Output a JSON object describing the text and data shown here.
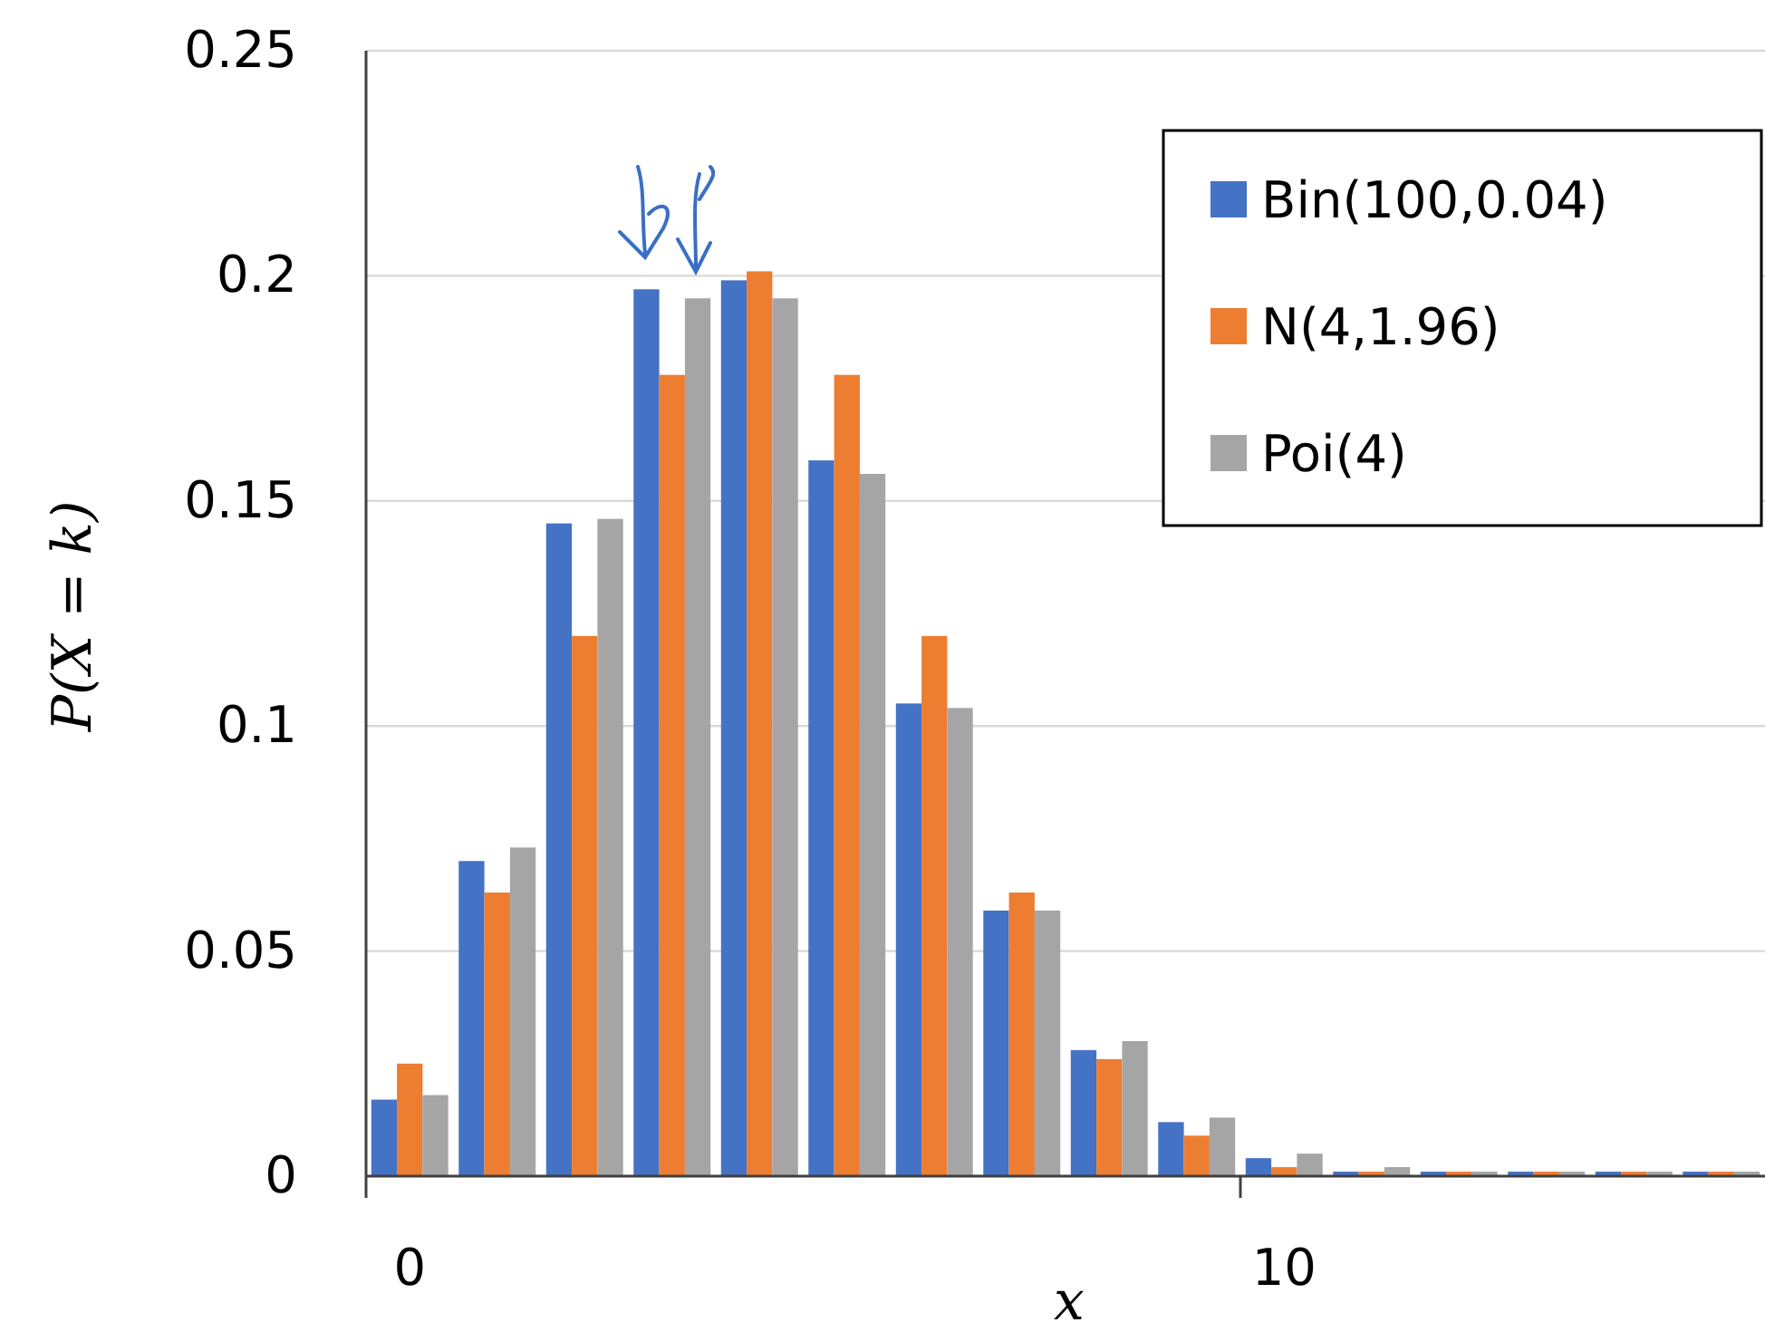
{
  "chart_data": {
    "type": "bar",
    "xlabel": "x",
    "ylabel": "P(X = k)",
    "categories": [
      "0",
      null,
      null,
      null,
      null,
      null,
      null,
      null,
      null,
      null,
      "10",
      null,
      null,
      null,
      null,
      null
    ],
    "series": [
      {
        "name": "Bin(100,0.04)",
        "color": "#4472c4",
        "values": [
          0.017,
          0.07,
          0.145,
          0.197,
          0.199,
          0.159,
          0.105,
          0.059,
          0.028,
          0.012,
          0.004,
          0.001,
          0.001,
          0.001,
          0.001,
          0.001
        ]
      },
      {
        "name": "N(4,1.96)",
        "color": "#ed7d31",
        "values": [
          0.025,
          0.063,
          0.12,
          0.178,
          0.201,
          0.178,
          0.12,
          0.063,
          0.026,
          0.009,
          0.002,
          0.001,
          0.001,
          0.001,
          0.001,
          0.001
        ]
      },
      {
        "name": "Poi(4)",
        "color": "#a5a5a5",
        "values": [
          0.018,
          0.073,
          0.146,
          0.195,
          0.195,
          0.156,
          0.104,
          0.059,
          0.03,
          0.013,
          0.005,
          0.002,
          0.001,
          0.001,
          0.001,
          0.001
        ]
      }
    ],
    "ylim": [
      0,
      0.25
    ],
    "yticks": [
      0,
      0.05,
      0.1,
      0.15,
      0.2,
      0.25
    ],
    "grid": "y",
    "legend": "top right"
  }
}
